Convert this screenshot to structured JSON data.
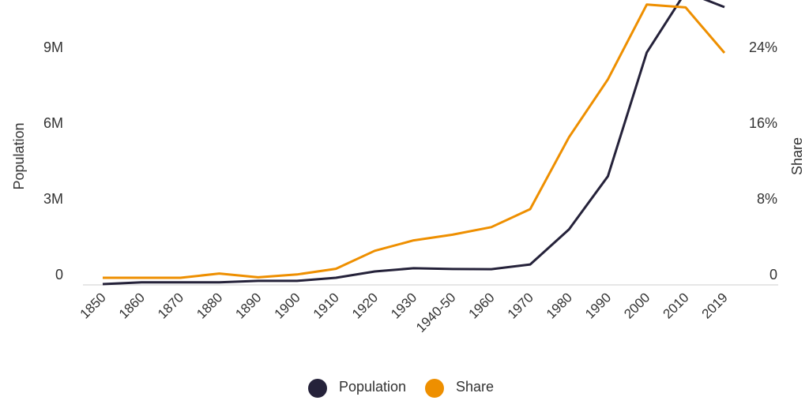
{
  "chart_data": {
    "type": "line",
    "categories": [
      "1850",
      "1860",
      "1870",
      "1880",
      "1890",
      "1900",
      "1910",
      "1920",
      "1930",
      "1940-50",
      "1960",
      "1970",
      "1980",
      "1990",
      "2000",
      "2010",
      "2019"
    ],
    "series": [
      {
        "name": "Population",
        "axis": "left",
        "color": "#25223a",
        "values": [
          0.03,
          0.1,
          0.1,
          0.1,
          0.16,
          0.16,
          0.28,
          0.53,
          0.66,
          0.63,
          0.62,
          0.81,
          2.2,
          4.3,
          9.2,
          11.6,
          11.0
        ]
      },
      {
        "name": "Share",
        "axis": "right",
        "color": "#ee8f00",
        "values": [
          0.75,
          0.75,
          0.75,
          1.2,
          0.8,
          1.1,
          1.7,
          3.6,
          4.7,
          5.3,
          6.1,
          8.0,
          15.6,
          21.7,
          29.6,
          29.3,
          24.5
        ]
      }
    ],
    "ylabel": "Population",
    "y2label": "Share",
    "ylim": [
      0,
      11
    ],
    "y2lim": [
      0,
      29.3
    ],
    "yticks": [
      "0",
      "3M",
      "6M",
      "9M"
    ],
    "y2ticks": [
      "0",
      "8%",
      "16%",
      "24%"
    ],
    "legend": {
      "position": "bottom",
      "items": [
        "Population",
        "Share"
      ]
    },
    "grid": false
  }
}
